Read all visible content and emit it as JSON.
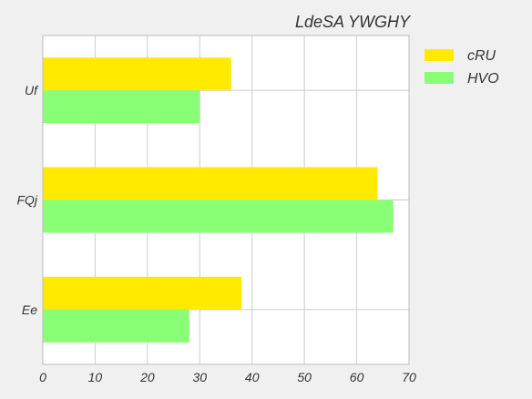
{
  "chart_data": {
    "type": "bar",
    "orientation": "horizontal",
    "title": "LdeSA YWGHY",
    "categories": [
      "Uf",
      "FQj",
      "Ee"
    ],
    "series": [
      {
        "name": "cRU",
        "values": [
          36,
          64,
          38
        ],
        "color": "#ffea00"
      },
      {
        "name": "HVO",
        "values": [
          30,
          67,
          28
        ],
        "color": "#88ff74"
      }
    ],
    "xlim": [
      0,
      70
    ],
    "xticks": [
      0,
      10,
      20,
      30,
      40,
      50,
      60,
      70
    ],
    "grid": true,
    "legend_position": "right-top"
  },
  "colors": {
    "background": "#f0f0f0",
    "plot_background": "#ffffff",
    "grid": "#cccccc"
  }
}
